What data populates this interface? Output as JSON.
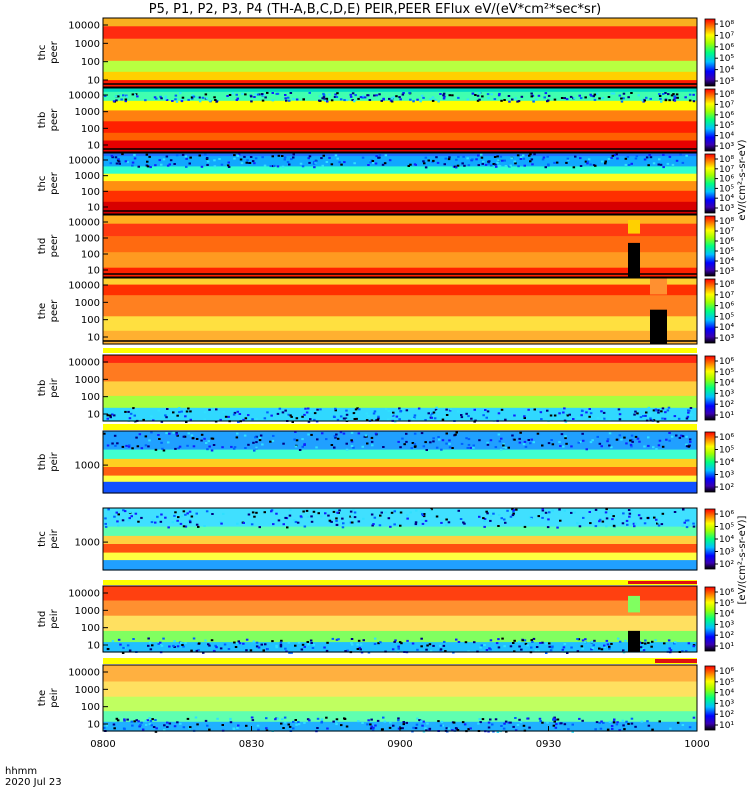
{
  "title": "P5, P1, P2, P3, P4 (TH-A,B,C,D,E) PEIR,PEER EFlux eV/(eV*cm²*sec*sr)",
  "footer": {
    "time_label": "hhmm",
    "date_label": "2020 Jul 23"
  },
  "x_ticks": [
    "0800",
    "0830",
    "0900",
    "0930",
    "1000"
  ],
  "colorbar_unit_top": "eV/(cm²-s-sr-eV)",
  "colorbar_unit_bottom": "[eV/(cm²-s-sr-eV)]",
  "chart_data": {
    "type": "heatmap",
    "x_range": [
      "0800",
      "1000"
    ],
    "x_unit": "hhmm",
    "y_scale": "log",
    "colormap": "rainbow",
    "panels": [
      {
        "ylabel": [
          "thc",
          "peer"
        ],
        "yticks": [
          "10000",
          "1000",
          "100",
          "10"
        ],
        "cbar_ticks": [
          "10⁸",
          "10⁷",
          "10⁶",
          "10⁵",
          "10⁴",
          "10³"
        ],
        "status_bar": "none"
      },
      {
        "ylabel": [
          "thb",
          "peer"
        ],
        "yticks": [
          "10000",
          "1000",
          "100",
          "10"
        ],
        "cbar_ticks": [
          "10⁸",
          "10⁷",
          "10⁶",
          "10⁵",
          "10⁴",
          "10³"
        ],
        "status_bar": "none"
      },
      {
        "ylabel": [
          "thc",
          "peer"
        ],
        "yticks": [
          "10000",
          "1000",
          "100",
          "10"
        ],
        "cbar_ticks": [
          "10⁸",
          "10⁷",
          "10⁶",
          "10⁵",
          "10⁴",
          "10³"
        ],
        "status_bar": "none"
      },
      {
        "ylabel": [
          "thd",
          "peer"
        ],
        "yticks": [
          "10000",
          "1000",
          "100",
          "10"
        ],
        "cbar_ticks": [
          "10⁸",
          "10⁷",
          "10⁶",
          "10⁵",
          "10⁴",
          "10³"
        ],
        "status_bar": "none"
      },
      {
        "ylabel": [
          "the",
          "peer"
        ],
        "yticks": [
          "10000",
          "1000",
          "100",
          "10"
        ],
        "cbar_ticks": [
          "10⁸",
          "10⁷",
          "10⁶",
          "10⁵",
          "10⁴",
          "10³"
        ],
        "status_bar": "none"
      },
      {
        "ylabel": [
          "thb",
          "peir"
        ],
        "yticks": [
          "10000",
          "1000",
          "100",
          "10"
        ],
        "cbar_ticks": [
          "10⁶",
          "10⁵",
          "10⁴",
          "10³",
          "10²",
          "10¹"
        ],
        "status_bar": "yellow"
      },
      {
        "ylabel": [
          "thb",
          "peir"
        ],
        "yticks": [
          "1000"
        ],
        "cbar_ticks": [
          "10⁶",
          "10⁵",
          "10⁴",
          "10³",
          "10²"
        ],
        "status_bar": "yellow"
      },
      {
        "ylabel": [
          "thc",
          "peir"
        ],
        "yticks": [
          "1000"
        ],
        "cbar_ticks": [
          "10⁶",
          "10⁵",
          "10⁴",
          "10³",
          "10²"
        ],
        "status_bar": "none"
      },
      {
        "ylabel": [
          "thd",
          "peir"
        ],
        "yticks": [
          "10000",
          "1000",
          "100",
          "10"
        ],
        "cbar_ticks": [
          "10⁶",
          "10⁵",
          "10⁴",
          "10³",
          "10²",
          "10¹"
        ],
        "status_bar": "yellow+red"
      },
      {
        "ylabel": [
          "the",
          "peir"
        ],
        "yticks": [
          "10000",
          "1000",
          "100",
          "10"
        ],
        "cbar_ticks": [
          "10⁶",
          "10⁵",
          "10⁴",
          "10³",
          "10²",
          "10¹"
        ],
        "status_bar": "yellow+red"
      }
    ],
    "notes": [
      "thd/the peer and thd peir show black data gaps near 0940-0955"
    ]
  },
  "colors": {
    "red": "#e01010",
    "yellow": "#ffff00",
    "black": "#000000"
  }
}
